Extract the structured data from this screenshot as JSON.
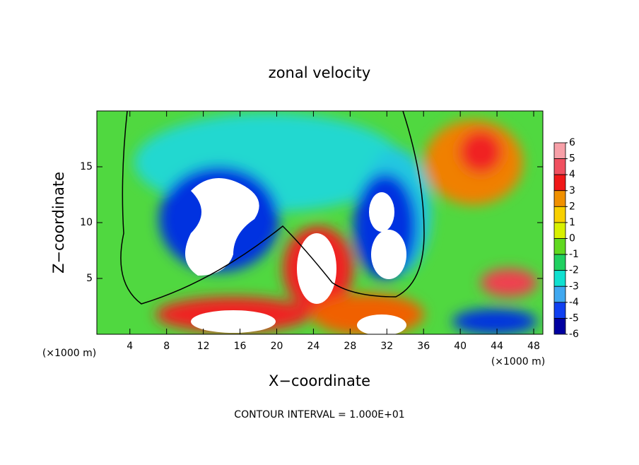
{
  "chart_data": {
    "type": "contour",
    "title": "zonal velocity",
    "x_label": "X−coordinate",
    "y_label": "Z−coordinate",
    "x_unit": "(×1000 m)",
    "footer": "CONTOUR INTERVAL = 1.000E+01",
    "xlim": [
      0.4,
      49
    ],
    "xticks": [
      4,
      8,
      12,
      16,
      20,
      24,
      28,
      32,
      36,
      40,
      44,
      48
    ],
    "ylim": [
      0,
      20
    ],
    "yticks": [
      5,
      10,
      15
    ],
    "colorbar": {
      "lim": [
        -6,
        6
      ],
      "ticks": [
        6,
        5,
        4,
        3,
        2,
        1,
        0,
        -1,
        -2,
        -3,
        -4,
        -5,
        -6
      ],
      "colors": [
        "#f7a0a8",
        "#f05060",
        "#f01818",
        "#f09000",
        "#f8d000",
        "#d8f000",
        "#60d820",
        "#20d060",
        "#10e0d0",
        "#40a8f0",
        "#1040f0",
        "#0000a0"
      ]
    }
  }
}
